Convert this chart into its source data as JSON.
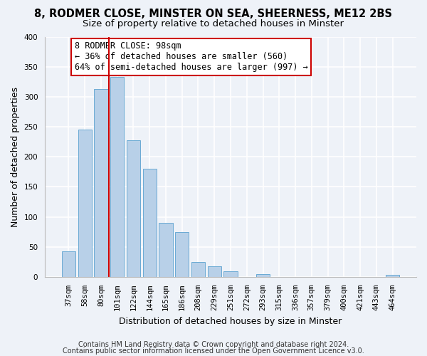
{
  "title": "8, RODMER CLOSE, MINSTER ON SEA, SHEERNESS, ME12 2BS",
  "subtitle": "Size of property relative to detached houses in Minster",
  "xlabel": "Distribution of detached houses by size in Minster",
  "ylabel": "Number of detached properties",
  "bar_labels": [
    "37sqm",
    "58sqm",
    "80sqm",
    "101sqm",
    "122sqm",
    "144sqm",
    "165sqm",
    "186sqm",
    "208sqm",
    "229sqm",
    "251sqm",
    "272sqm",
    "293sqm",
    "315sqm",
    "336sqm",
    "357sqm",
    "379sqm",
    "400sqm",
    "421sqm",
    "443sqm",
    "464sqm"
  ],
  "bar_values": [
    43,
    245,
    313,
    333,
    228,
    180,
    90,
    75,
    25,
    18,
    10,
    0,
    5,
    0,
    0,
    0,
    0,
    0,
    0,
    0,
    3
  ],
  "bar_color": "#b8d0e8",
  "bar_edge_color": "#6aaad4",
  "vline_x_idx": 3,
  "vline_color": "#cc0000",
  "annotation_text": "8 RODMER CLOSE: 98sqm\n← 36% of detached houses are smaller (560)\n64% of semi-detached houses are larger (997) →",
  "annotation_box_color": "#ffffff",
  "annotation_box_edge": "#cc0000",
  "ylim": [
    0,
    400
  ],
  "yticks": [
    0,
    50,
    100,
    150,
    200,
    250,
    300,
    350,
    400
  ],
  "footer_line1": "Contains HM Land Registry data © Crown copyright and database right 2024.",
  "footer_line2": "Contains public sector information licensed under the Open Government Licence v3.0.",
  "bg_color": "#eef2f8",
  "title_fontsize": 10.5,
  "subtitle_fontsize": 9.5,
  "axis_label_fontsize": 9,
  "tick_fontsize": 7.5,
  "annotation_fontsize": 8.5,
  "footer_fontsize": 7
}
